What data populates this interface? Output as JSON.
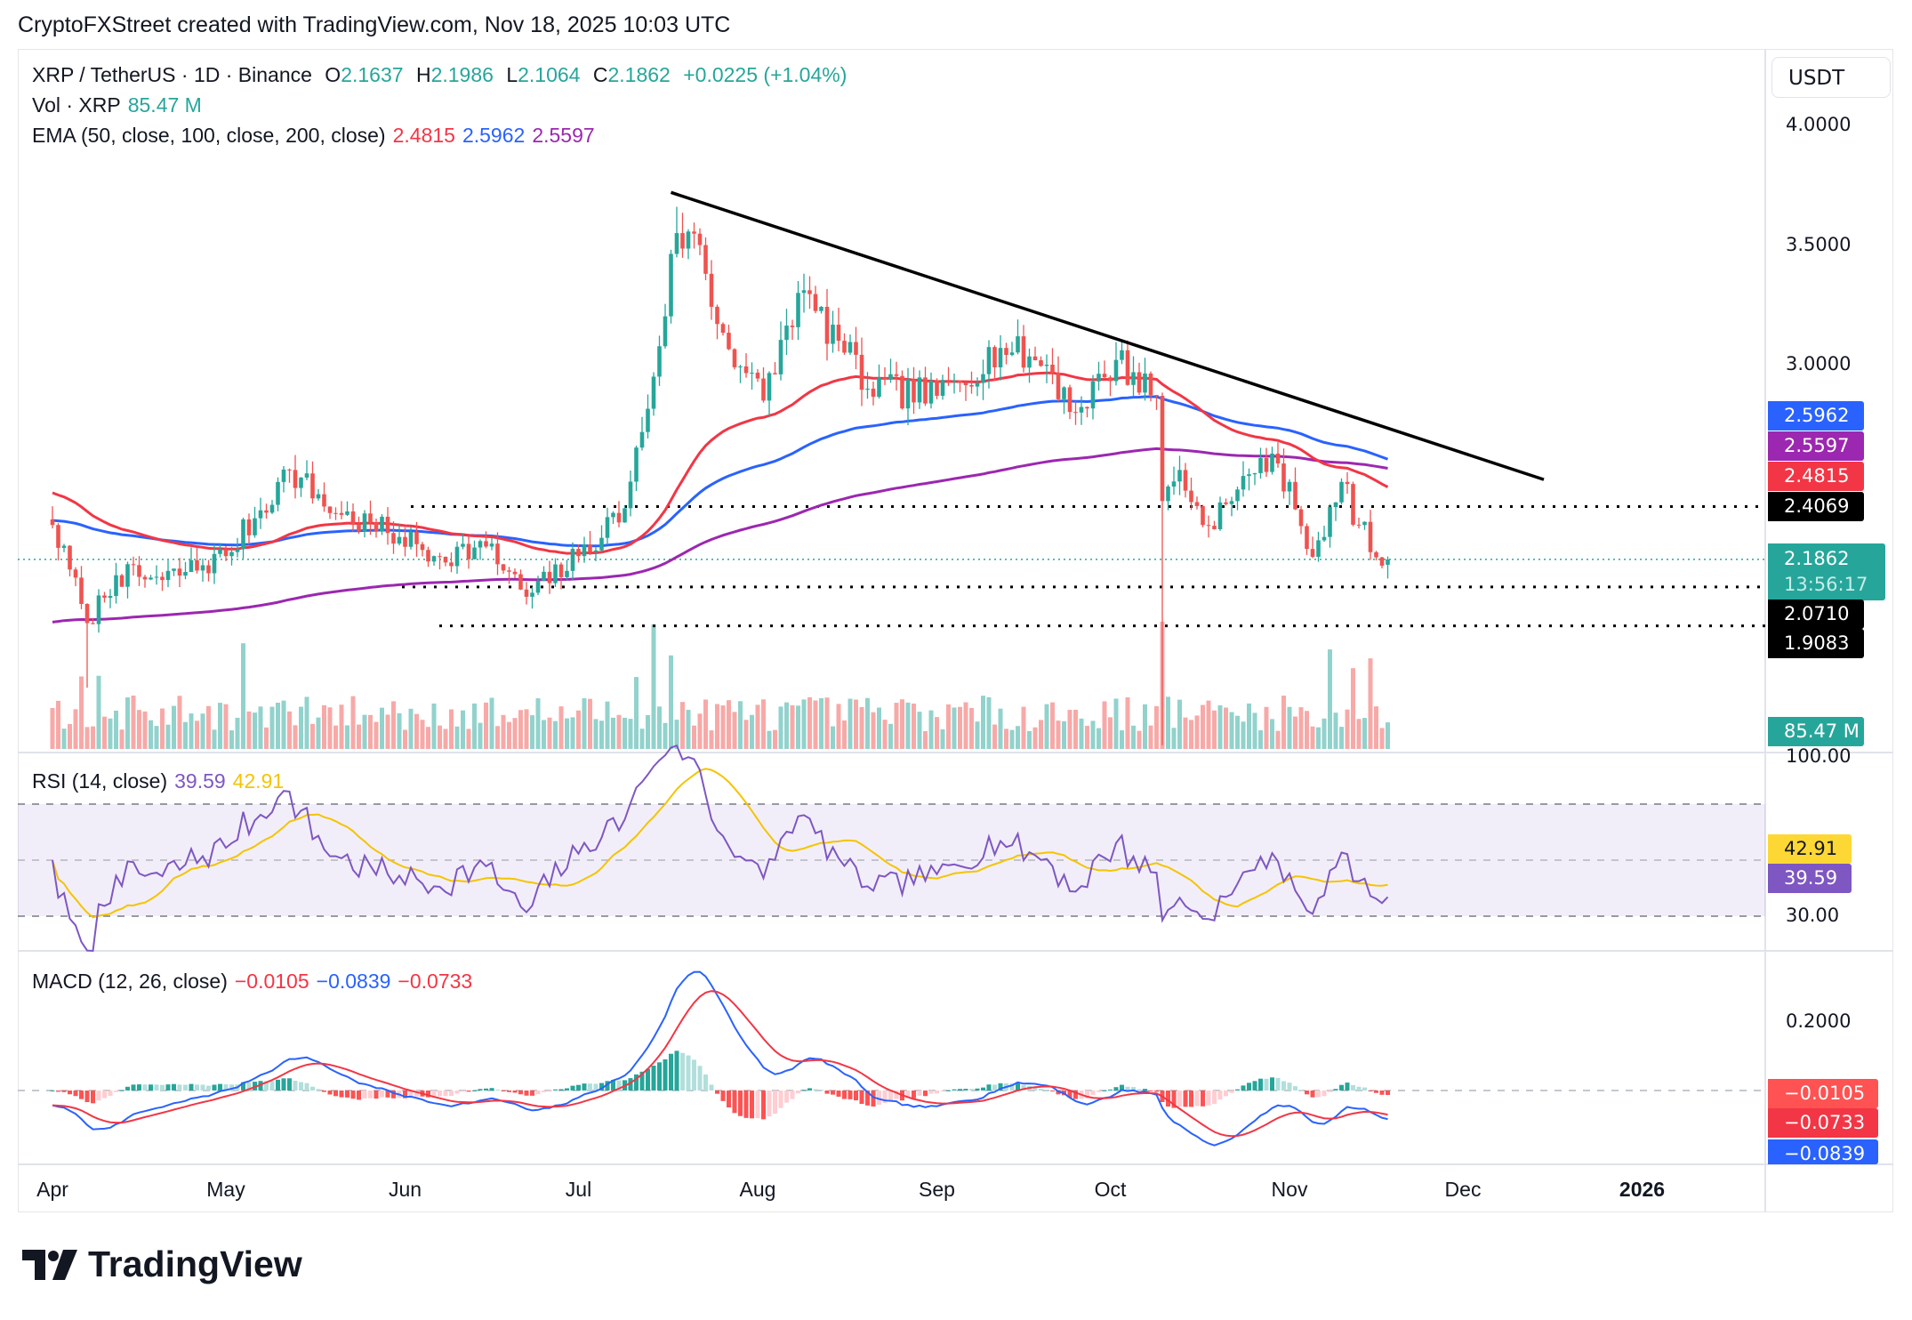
{
  "header": {
    "attribution": "CryptoFXStreet created with TradingView.com, Nov 18, 2025 10:03 UTC"
  },
  "legend": {
    "symbol": "XRP / TetherUS · 1D · Binance",
    "o_label": "O",
    "o": "2.1637",
    "h_label": "H",
    "h": "2.1986",
    "l_label": "L",
    "l": "2.1064",
    "c_label": "C",
    "c": "2.1862",
    "change": "+0.0225 (+1.04%)",
    "vol_label": "Vol · XRP",
    "vol": "85.47 M",
    "ema_label": "EMA (50, close, 100, close, 200, close)",
    "ema50": "2.4815",
    "ema100": "2.5962",
    "ema200": "2.5597",
    "rsi_label": "RSI (14, close)",
    "rsi": "39.59",
    "rsi_ma": "42.91",
    "macd_label": "MACD (12, 26, close)",
    "macd_hist": "−0.0105",
    "macd": "−0.0839",
    "macd_signal": "−0.0733"
  },
  "price_axis": {
    "currency": "USDT",
    "ticks": [
      "4.0000",
      "3.5000",
      "3.0000"
    ],
    "tags": {
      "ema100": "2.5962",
      "ema200": "2.5597",
      "ema50": "2.4815",
      "res": "2.4069",
      "last": "2.1862",
      "countdown": "13:56:17",
      "sup1": "2.0710",
      "sup2": "1.9083",
      "vol": "85.47 M"
    }
  },
  "rsi_axis": {
    "ticks": [
      "100.00",
      "30.00"
    ],
    "tags": {
      "ma": "42.91",
      "rsi": "39.59"
    }
  },
  "macd_axis": {
    "ticks": [
      "0.2000"
    ],
    "tags": {
      "hist": "−0.0105",
      "signal": "−0.0733",
      "macd": "−0.0839"
    }
  },
  "time_axis": [
    "Apr",
    "May",
    "Jun",
    "Jul",
    "Aug",
    "Sep",
    "Oct",
    "Nov",
    "Dec",
    "2026"
  ],
  "logo": "TradingView",
  "colors": {
    "up": "#26a69a",
    "down": "#ef5350",
    "ema50": "#f23645",
    "ema100": "#2962ff",
    "ema200": "#9c27b0",
    "rsi": "#7e57c2",
    "rsi_ma": "#f5c400",
    "macd": "#2962ff",
    "signal": "#f23645"
  },
  "chart_data": {
    "type": "candlestick",
    "symbol": "XRP/USDT",
    "interval": "1D",
    "x_range": [
      "2025-04-01",
      "2025-11-18"
    ],
    "y_range": [
      1.4,
      4.1
    ],
    "close_path": [
      [
        "2025-04-01",
        2.33
      ],
      [
        "2025-04-06",
        2.0
      ],
      [
        "2025-04-07",
        1.92
      ],
      [
        "2025-04-12",
        2.12
      ],
      [
        "2025-04-20",
        2.1
      ],
      [
        "2025-05-01",
        2.2
      ],
      [
        "2025-05-12",
        2.56
      ],
      [
        "2025-05-20",
        2.38
      ],
      [
        "2025-05-31",
        2.28
      ],
      [
        "2025-06-06",
        2.2
      ],
      [
        "2025-06-15",
        2.24
      ],
      [
        "2025-06-22",
        2.03
      ],
      [
        "2025-07-01",
        2.2
      ],
      [
        "2025-07-09",
        2.4
      ],
      [
        "2025-07-14",
        2.95
      ],
      [
        "2025-07-18",
        3.55
      ],
      [
        "2025-07-22",
        3.5
      ],
      [
        "2025-07-25",
        3.17
      ],
      [
        "2025-08-02",
        2.85
      ],
      [
        "2025-08-08",
        3.3
      ],
      [
        "2025-08-15",
        3.1
      ],
      [
        "2025-08-20",
        2.9
      ],
      [
        "2025-09-01",
        2.87
      ],
      [
        "2025-09-12",
        3.07
      ],
      [
        "2025-09-20",
        3.0
      ],
      [
        "2025-09-25",
        2.8
      ],
      [
        "2025-10-02",
        3.02
      ],
      [
        "2025-10-09",
        2.87
      ],
      [
        "2025-10-10",
        2.43
      ],
      [
        "2025-10-13",
        2.56
      ],
      [
        "2025-10-17",
        2.33
      ],
      [
        "2025-10-22",
        2.43
      ],
      [
        "2025-10-27",
        2.61
      ],
      [
        "2025-11-01",
        2.51
      ],
      [
        "2025-11-04",
        2.23
      ],
      [
        "2025-11-07",
        2.28
      ],
      [
        "2025-11-10",
        2.51
      ],
      [
        "2025-11-13",
        2.33
      ],
      [
        "2025-11-17",
        2.16
      ],
      [
        "2025-11-18",
        2.1862
      ]
    ],
    "last": {
      "open": 2.1637,
      "high": 2.1986,
      "low": 2.1064,
      "close": 2.1862,
      "volume_m": 85.47
    },
    "ema": {
      "50": 2.4815,
      "100": 2.5962,
      "200": 2.5597
    },
    "horizontal_levels": [
      2.4069,
      2.071,
      1.9083
    ],
    "trendline": [
      [
        "2025-07-17",
        3.72
      ],
      [
        "2025-12-15",
        2.52
      ]
    ],
    "rsi": {
      "value": 39.59,
      "ma": 42.91,
      "bands": [
        30,
        70
      ]
    },
    "macd": {
      "macd": -0.0839,
      "signal": -0.0733,
      "hist": -0.0105
    }
  }
}
